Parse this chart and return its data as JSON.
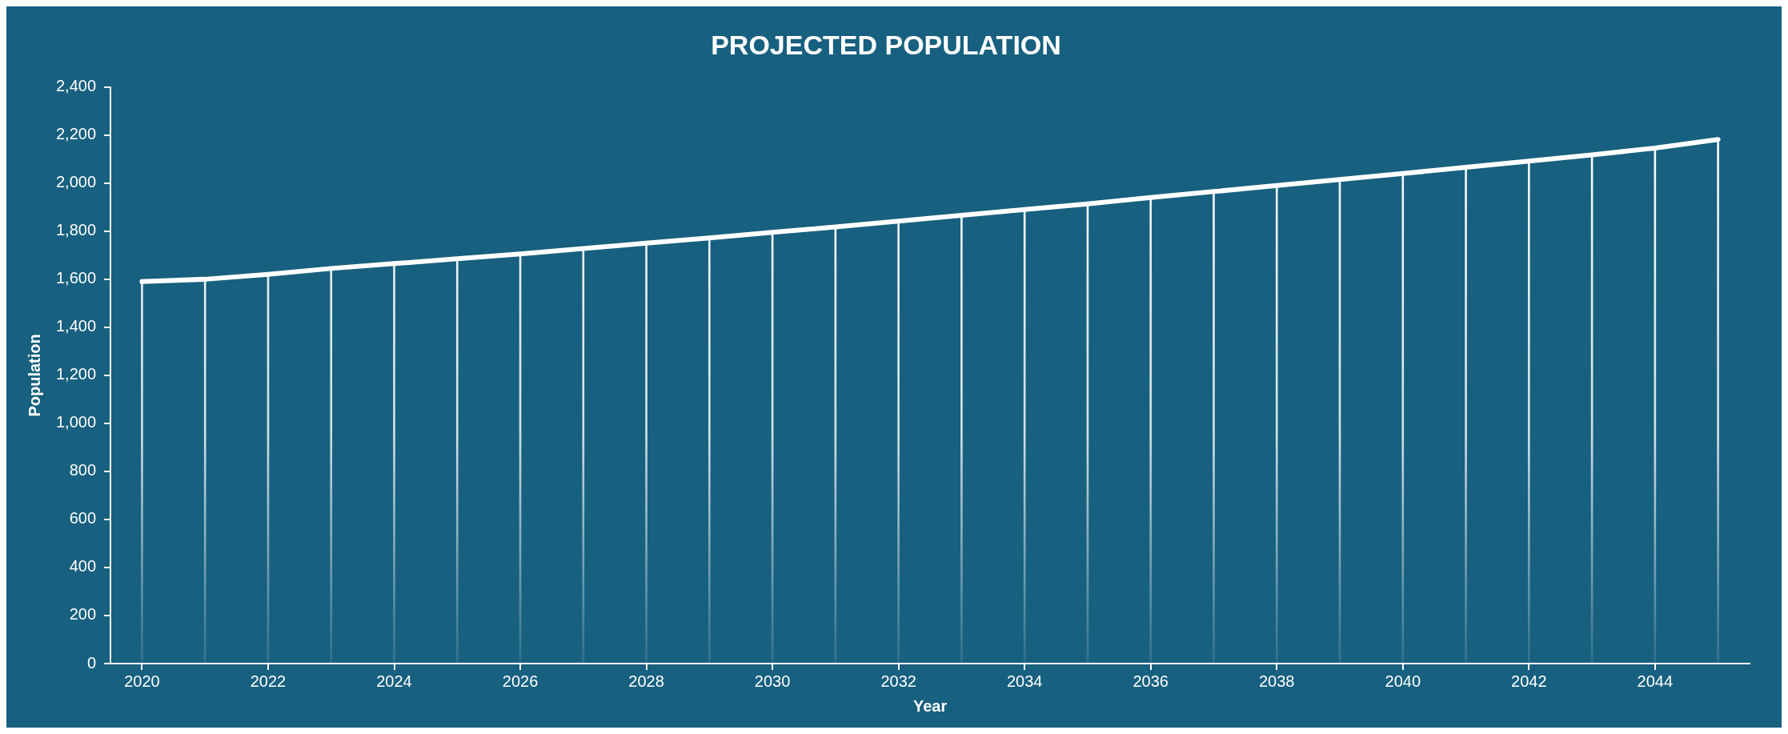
{
  "chart_data": {
    "type": "line",
    "title": "PROJECTED POPULATION",
    "xlabel": "Year",
    "ylabel": "Population",
    "x": [
      2020,
      2021,
      2022,
      2023,
      2024,
      2025,
      2026,
      2027,
      2028,
      2029,
      2030,
      2031,
      2032,
      2033,
      2034,
      2035,
      2036,
      2037,
      2038,
      2039,
      2040,
      2041,
      2042,
      2043,
      2044,
      2045
    ],
    "series": [
      {
        "type": "bar",
        "color": "#ffffff",
        "values": [
          1590,
          1600,
          1620,
          1645,
          1665,
          1685,
          1705,
          1728,
          1750,
          1772,
          1795,
          1818,
          1842,
          1866,
          1890,
          1914,
          1940,
          1965,
          1990,
          2015,
          2040,
          2066,
          2092,
          2118,
          2146,
          2182
        ]
      },
      {
        "color": "#ffffff",
        "values": [
          1590,
          1600,
          1620,
          1645,
          1665,
          1685,
          1705,
          1728,
          1750,
          1772,
          1795,
          1818,
          1842,
          1866,
          1890,
          1914,
          1940,
          1965,
          1990,
          2015,
          2040,
          2066,
          2092,
          2118,
          2146,
          2182
        ]
      }
    ],
    "xlim": [
      2019.5,
      2045.5
    ],
    "xticks": [
      2020,
      2022,
      2024,
      2026,
      2028,
      2030,
      2032,
      2034,
      2036,
      2038,
      2040,
      2042,
      2044
    ],
    "ylim": [
      0,
      2400
    ],
    "yticks": [
      {
        "value": 0,
        "label": "0"
      },
      {
        "value": 200,
        "label": "200"
      },
      {
        "value": 400,
        "label": "400"
      },
      {
        "value": 600,
        "label": "600"
      },
      {
        "value": 800,
        "label": "800"
      },
      {
        "value": 1000,
        "label": "1,000"
      },
      {
        "value": 1200,
        "label": "1,200"
      },
      {
        "value": 1400,
        "label": "1,400"
      },
      {
        "value": 1600,
        "label": "1,600"
      },
      {
        "value": 1800,
        "label": "1,800"
      },
      {
        "value": 2000,
        "label": "2,000"
      },
      {
        "value": 2200,
        "label": "2,200"
      },
      {
        "value": 2400,
        "label": "2,400"
      }
    ],
    "grid": false,
    "legend": false,
    "marker": "none",
    "line_style": "solid"
  }
}
